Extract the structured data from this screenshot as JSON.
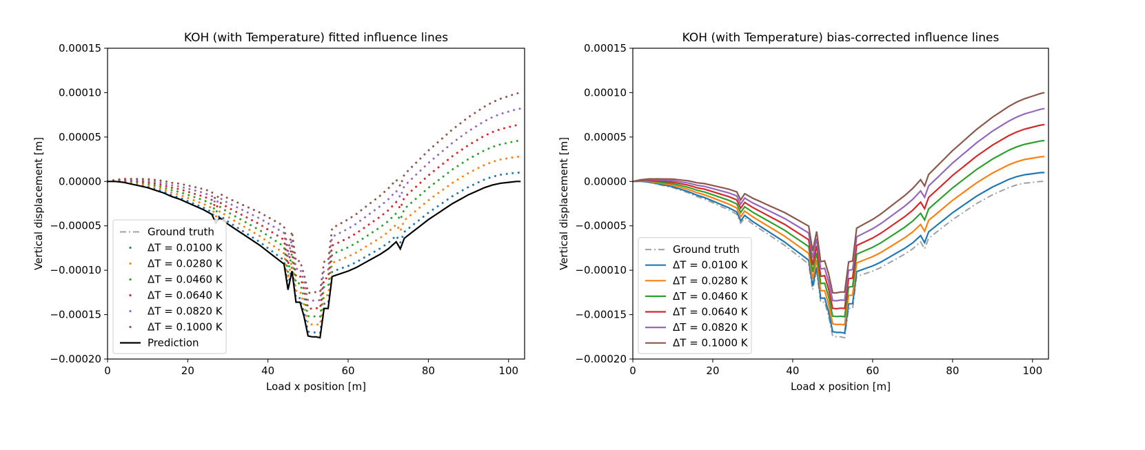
{
  "chart_data": [
    {
      "type": "line",
      "title": "KOH (with Temperature) fitted influence lines",
      "xlabel": "Load x position [m]",
      "ylabel": "Vertical displacement [m]",
      "xlim": [
        0,
        104
      ],
      "ylim": [
        -0.0002,
        0.00015
      ],
      "xticks": [
        0,
        20,
        40,
        60,
        80,
        100
      ],
      "xtick_labels": [
        "0",
        "20",
        "40",
        "60",
        "80",
        "100"
      ],
      "yticks": [
        -0.0002,
        -0.00015,
        -0.0001,
        -5e-05,
        0,
        5e-05,
        0.0001,
        0.00015
      ],
      "ytick_labels": [
        "−0.00020",
        "−0.00015",
        "−0.00010",
        "−0.00005",
        "0.00000",
        "0.00005",
        "0.00010",
        "0.00015"
      ],
      "legend_position": "lower-left",
      "series_style": "dotted",
      "series": [
        {
          "name": "Ground truth",
          "legend_label": "Ground truth",
          "color": "#a0a0a0",
          "style": "dashdot",
          "role": "ground_truth"
        },
        {
          "name": "ΔT = 0.0100 K",
          "legend_label": "ΔT = 0.0100 K",
          "color": "#1f77b4",
          "offset_end": 1e-05
        },
        {
          "name": "ΔT = 0.0280 K",
          "legend_label": "ΔT = 0.0280 K",
          "color": "#ff7f0e",
          "offset_end": 2.8e-05
        },
        {
          "name": "ΔT = 0.0460 K",
          "legend_label": "ΔT = 0.0460 K",
          "color": "#2ca02c",
          "offset_end": 4.6e-05
        },
        {
          "name": "ΔT = 0.0640 K",
          "legend_label": "ΔT = 0.0640 K",
          "color": "#d62728",
          "offset_end": 6.4e-05
        },
        {
          "name": "ΔT = 0.0820 K",
          "legend_label": "ΔT = 0.0820 K",
          "color": "#9467bd",
          "offset_end": 8.2e-05
        },
        {
          "name": "ΔT = 0.1000 K",
          "legend_label": "ΔT = 0.1000 K",
          "color": "#8c564b",
          "offset_end": 0.0001
        },
        {
          "name": "Prediction",
          "legend_label": "Prediction",
          "color": "#000000",
          "style": "solid",
          "role": "prediction"
        }
      ]
    },
    {
      "type": "line",
      "title": "KOH (with Temperature) bias-corrected influence lines",
      "xlabel": "Load x position [m]",
      "ylabel": "Vertical displacement [m]",
      "xlim": [
        0,
        104
      ],
      "ylim": [
        -0.0002,
        0.00015
      ],
      "xticks": [
        0,
        20,
        40,
        60,
        80,
        100
      ],
      "xtick_labels": [
        "0",
        "20",
        "40",
        "60",
        "80",
        "100"
      ],
      "yticks": [
        -0.0002,
        -0.00015,
        -0.0001,
        -5e-05,
        0,
        5e-05,
        0.0001,
        0.00015
      ],
      "ytick_labels": [
        "−0.00020",
        "−0.00015",
        "−0.00010",
        "−0.00005",
        "0.00000",
        "0.00005",
        "0.00010",
        "0.00015"
      ],
      "legend_position": "lower-left",
      "series_style": "solid",
      "series": [
        {
          "name": "Ground truth",
          "legend_label": "Ground truth",
          "color": "#a0a0a0",
          "style": "dashdot",
          "role": "ground_truth"
        },
        {
          "name": "ΔT = 0.0100 K",
          "legend_label": "ΔT = 0.0100 K",
          "color": "#1f77b4",
          "offset_end": 1e-05
        },
        {
          "name": "ΔT = 0.0280 K",
          "legend_label": "ΔT = 0.0280 K",
          "color": "#ff7f0e",
          "offset_end": 2.8e-05
        },
        {
          "name": "ΔT = 0.0460 K",
          "legend_label": "ΔT = 0.0460 K",
          "color": "#2ca02c",
          "offset_end": 4.6e-05
        },
        {
          "name": "ΔT = 0.0640 K",
          "legend_label": "ΔT = 0.0640 K",
          "color": "#d62728",
          "offset_end": 6.4e-05
        },
        {
          "name": "ΔT = 0.0820 K",
          "legend_label": "ΔT = 0.0820 K",
          "color": "#9467bd",
          "offset_end": 8.2e-05
        },
        {
          "name": "ΔT = 0.1000 K",
          "legend_label": "ΔT = 0.1000 K",
          "color": "#8c564b",
          "offset_end": 0.0001
        }
      ]
    }
  ],
  "base_curve": {
    "x": [
      0,
      2,
      4,
      6,
      8,
      10,
      12,
      14,
      16,
      18,
      20,
      22,
      24,
      26,
      27,
      28,
      30,
      32,
      34,
      36,
      38,
      40,
      42,
      44,
      45,
      46,
      47,
      48,
      49,
      50,
      51,
      52,
      53,
      54,
      55,
      56,
      58,
      60,
      62,
      64,
      66,
      68,
      70,
      72,
      73,
      74,
      76,
      78,
      80,
      82,
      84,
      86,
      88,
      90,
      92,
      94,
      96,
      98,
      100,
      102,
      103
    ],
    "y": [
      0,
      0,
      -1e-06,
      -3e-06,
      -5e-06,
      -7e-06,
      -1e-05,
      -1.3e-05,
      -1.7e-05,
      -2e-05,
      -2.4e-05,
      -2.8e-05,
      -3.2e-05,
      -3.7e-05,
      -4.7e-05,
      -4.1e-05,
      -4.8e-05,
      -5.4e-05,
      -6e-05,
      -6.6e-05,
      -7.2e-05,
      -7.9e-05,
      -8.6e-05,
      -9.3e-05,
      -0.000122,
      -0.000101,
      -0.000136,
      -0.000136,
      -0.000152,
      -0.000174,
      -0.000175,
      -0.000175,
      -0.000176,
      -0.000143,
      -0.000143,
      -0.000107,
      -0.000104,
      -0.000101,
      -9.7e-05,
      -9.2e-05,
      -8.7e-05,
      -8.2e-05,
      -7.6e-05,
      -6.8e-05,
      -7.6e-05,
      -6.4e-05,
      -5.7e-05,
      -5e-05,
      -4.3e-05,
      -3.7e-05,
      -3.1e-05,
      -2.5e-05,
      -2e-05,
      -1.5e-05,
      -1.1e-05,
      -7e-06,
      -4e-06,
      -2e-06,
      -1e-06,
      0,
      0
    ]
  }
}
